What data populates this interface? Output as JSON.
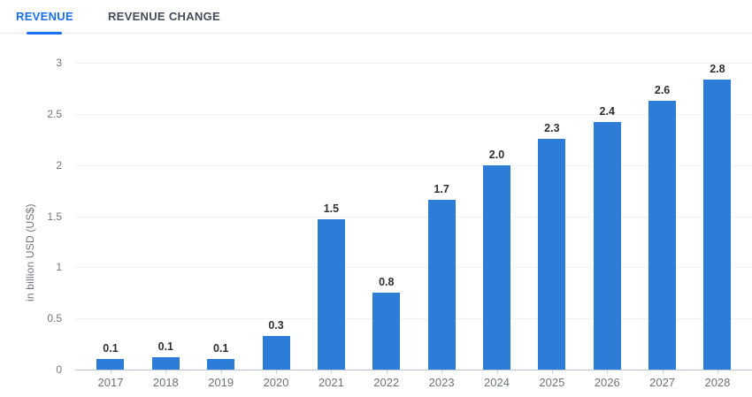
{
  "tabs": [
    {
      "label": "REVENUE",
      "active": true
    },
    {
      "label": "REVENUE CHANGE",
      "active": false
    }
  ],
  "colors": {
    "bar": "#2d7dd8",
    "tab_active": "#1a6ff0",
    "tab_inactive": "#454d59",
    "divider": "#e8ecf1",
    "grid": "#f1f2f6",
    "axis": "#bac4d1",
    "tick": "#ccd3de",
    "ytick_text": "#70757d",
    "xtick_text": "#6d727b",
    "value_text": "#2f2f33"
  },
  "chart_data": {
    "type": "bar",
    "title": "",
    "categories": [
      "2017",
      "2018",
      "2019",
      "2020",
      "2021",
      "2022",
      "2023",
      "2024",
      "2025",
      "2026",
      "2027",
      "2028"
    ],
    "values": [
      0.1,
      0.1,
      0.1,
      0.3,
      1.5,
      0.8,
      1.7,
      2.0,
      2.3,
      2.4,
      2.6,
      2.8
    ],
    "value_labels": [
      "0.1",
      "0.1",
      "0.1",
      "0.3",
      "1.5",
      "0.8",
      "1.7",
      "2.0",
      "2.3",
      "2.4",
      "2.6",
      "2.8"
    ],
    "values_precise": [
      0.1,
      0.12,
      0.1,
      0.33,
      1.47,
      0.75,
      1.66,
      2.0,
      2.26,
      2.42,
      2.63,
      2.84
    ],
    "xlabel": "",
    "ylabel": "in billion USD (US$)",
    "yticks": [
      0,
      0.5,
      1,
      1.5,
      2,
      2.5,
      3
    ],
    "ytick_labels": [
      "0",
      "0.5",
      "1",
      "1.5",
      "2",
      "2.5",
      "3"
    ],
    "ylim": [
      0,
      3
    ],
    "grid": true,
    "legend": false,
    "bar_color": "#2d7dd8"
  }
}
